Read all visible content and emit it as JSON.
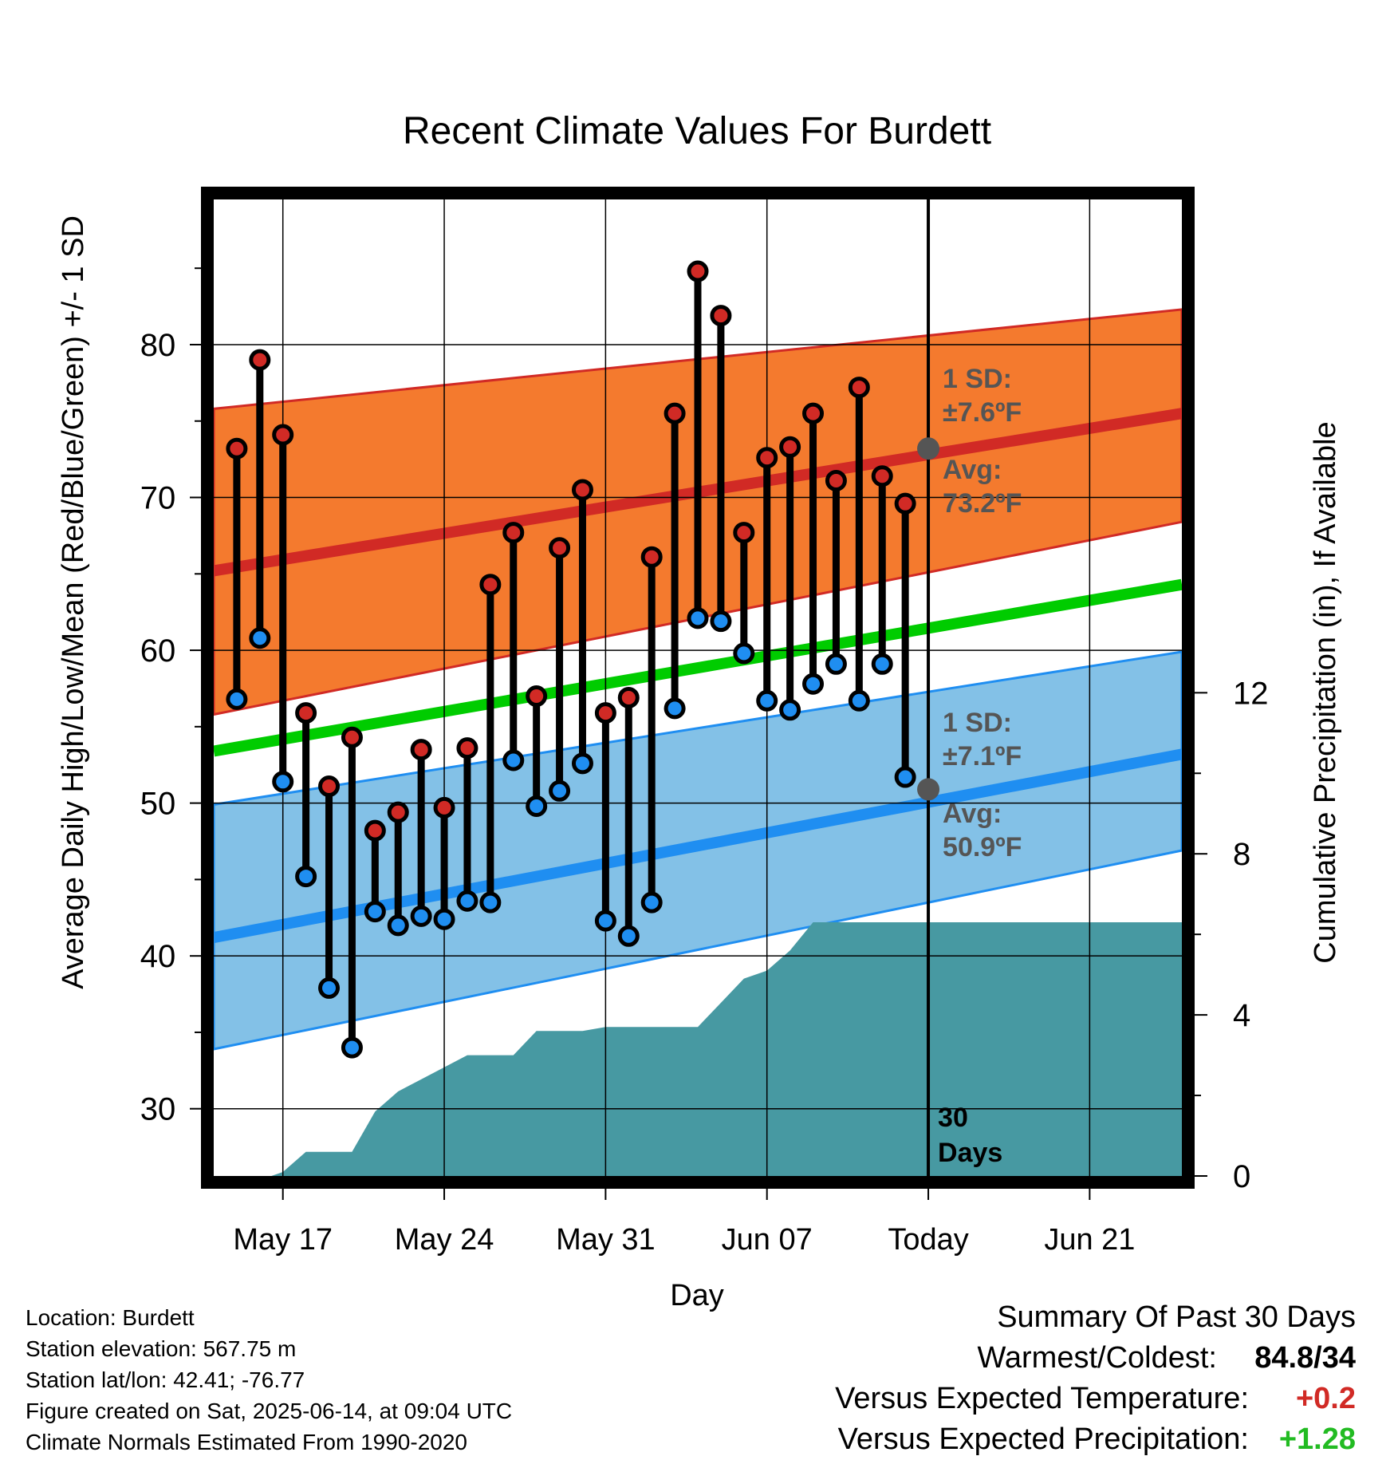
{
  "title": "Recent Climate Values For Burdett",
  "chart_data": {
    "type": "line",
    "title": "Recent Climate Values For Burdett",
    "xlabel": "Day",
    "ylabel": "Average Daily High/Low/Mean (Red/Blue/Green) +/- 1 SD",
    "y2label": "Cumulative Precipitation (in), If Available",
    "x_start": "May 14",
    "x_end": "Jun 23",
    "ylim": [
      25.6,
      89.5
    ],
    "y2lim": [
      0,
      24.25
    ],
    "x_ticks": [
      {
        "day": 3,
        "label": "May 17"
      },
      {
        "day": 10,
        "label": "May 24"
      },
      {
        "day": 17,
        "label": "May 31"
      },
      {
        "day": 24,
        "label": "Jun 07"
      },
      {
        "day": 31,
        "label": "Today"
      },
      {
        "day": 38,
        "label": "Jun 21"
      }
    ],
    "y_ticks": [
      30,
      40,
      50,
      60,
      70,
      80
    ],
    "y2_ticks": [
      0,
      4,
      8,
      12
    ],
    "today_day": 31,
    "today_label": "30\nDays",
    "grid": true,
    "daily": {
      "days": [
        1,
        2,
        3,
        4,
        5,
        6,
        7,
        8,
        9,
        10,
        11,
        12,
        13,
        14,
        15,
        16,
        17,
        18,
        19,
        20,
        21,
        22,
        23,
        24,
        25,
        26,
        27,
        28,
        29,
        30
      ],
      "high": [
        73.2,
        79.0,
        74.1,
        55.9,
        51.1,
        54.3,
        48.2,
        49.4,
        53.5,
        49.7,
        53.6,
        64.3,
        67.7,
        57.0,
        66.7,
        70.5,
        55.9,
        56.9,
        66.1,
        75.5,
        84.8,
        81.9,
        67.7,
        72.6,
        73.3,
        75.5,
        71.1,
        77.2,
        71.4,
        69.6
      ],
      "low": [
        56.8,
        60.8,
        51.4,
        45.2,
        37.9,
        34.0,
        42.9,
        42.0,
        42.6,
        42.4,
        43.6,
        43.5,
        52.8,
        49.8,
        50.8,
        52.6,
        42.3,
        41.3,
        43.5,
        56.2,
        62.1,
        61.9,
        59.8,
        56.7,
        56.1,
        57.8,
        59.1,
        56.7,
        59.1,
        51.7
      ]
    },
    "normals": {
      "days": [
        0,
        42
      ],
      "high_avg": [
        65.2,
        75.5
      ],
      "high_sd_upper": [
        75.8,
        82.3
      ],
      "high_sd_lower": [
        55.8,
        68.4
      ],
      "low_avg": [
        41.2,
        53.2
      ],
      "low_sd_upper": [
        49.9,
        59.9
      ],
      "low_sd_lower": [
        33.9,
        46.9
      ],
      "mean_avg": [
        53.4,
        64.3
      ]
    },
    "precipitation": {
      "days": [
        0,
        2.5,
        3.0,
        4.0,
        5.0,
        6.0,
        7.0,
        8.0,
        9.0,
        10.0,
        11.0,
        12.0,
        13.0,
        14.0,
        15.0,
        16.0,
        17.0,
        18.0,
        19.0,
        20.0,
        21.0,
        22.0,
        23.0,
        24.0,
        25.0,
        26.0,
        27.0,
        28.0,
        29.0,
        30.0,
        31.0,
        42
      ],
      "values": [
        0,
        0,
        0.1,
        0.6,
        0.6,
        0.6,
        1.6,
        2.1,
        2.4,
        2.7,
        3.0,
        3.0,
        3.0,
        3.6,
        3.6,
        3.6,
        3.7,
        3.7,
        3.7,
        3.7,
        3.7,
        4.3,
        4.9,
        5.1,
        5.6,
        6.3,
        6.3,
        6.3,
        6.3,
        6.3,
        6.3,
        6.3
      ]
    },
    "annotations": {
      "high_sd": "1 SD:",
      "high_sd_value": "±7.6ºF",
      "high_avg": "Avg:",
      "high_avg_value": "73.2ºF",
      "high_today": 73.2,
      "low_sd": "1 SD:",
      "low_sd_value": "±7.1ºF",
      "low_avg": "Avg:",
      "low_avg_value": "50.9ºF",
      "low_today": 50.9
    },
    "colors": {
      "high_band": "#f47a2e",
      "high_line": "#d12a25",
      "low_band": "#83c1e7",
      "low_line": "#1f8ef1",
      "mean_line": "#00cc00",
      "precip": "#4799a2",
      "high_dot": "#d12a25",
      "low_dot": "#1f8ef1",
      "annotation": "#555555"
    }
  },
  "info": {
    "location": "Location: Burdett",
    "elevation": "Station elevation: 567.75 m",
    "latlon": "Station lat/lon: 42.41; -76.77",
    "created": "Figure created on Sat, 2025-06-14, at 09:04 UTC",
    "normals": "Climate Normals Estimated From 1990-2020"
  },
  "summary": {
    "heading": "Summary Of Past 30 Days",
    "warmest_label": "Warmest/Coldest:",
    "warmest_value": "84.8/34",
    "temp_label": "Versus Expected Temperature:",
    "temp_value": "+0.2",
    "temp_color": "#d12a25",
    "precip_label": "Versus Expected Precipitation:",
    "precip_value": "+1.28",
    "precip_color": "#22bb22"
  }
}
